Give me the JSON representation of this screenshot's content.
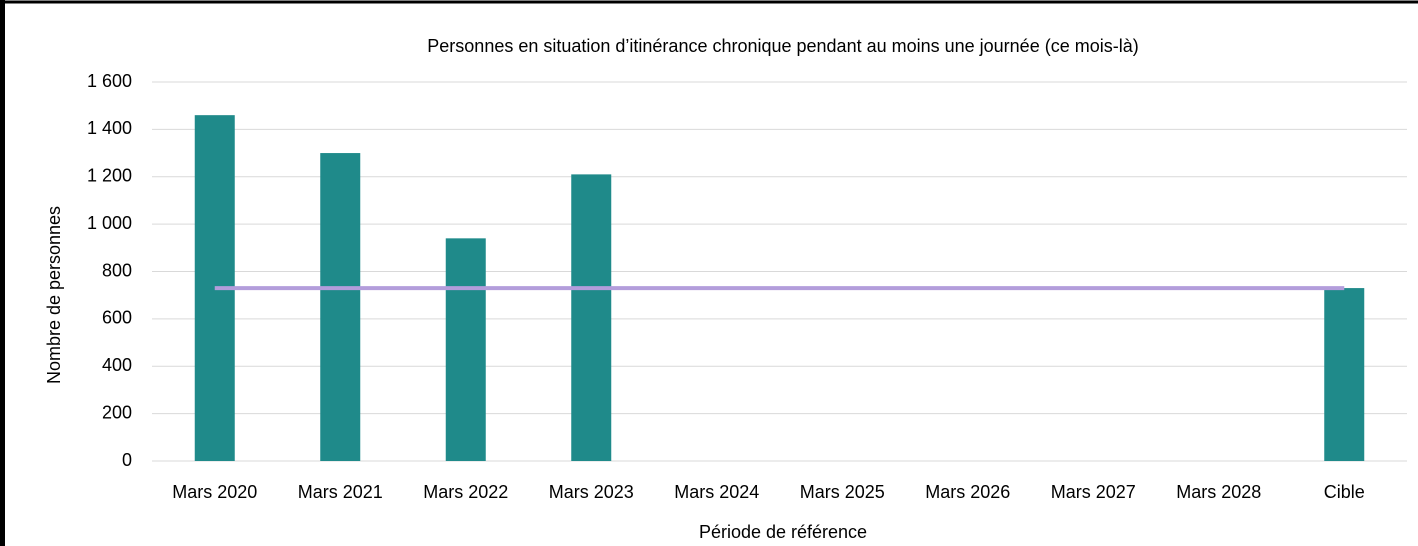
{
  "chart_data": {
    "type": "bar",
    "title": "Personnes en situation d’itinérance chronique pendant au moins une journée (ce mois-là)",
    "x_label": "Période de référence",
    "y_label": "Nombre de personnes",
    "categories": [
      "Mars 2020",
      "Mars 2021",
      "Mars 2022",
      "Mars 2023",
      "Mars 2024",
      "Mars 2025",
      "Mars 2026",
      "Mars 2027",
      "Mars 2028",
      "Cible"
    ],
    "series": [
      {
        "type": "bar",
        "color": "#1f8a8a",
        "values": [
          1460,
          1300,
          940,
          1210,
          null,
          null,
          null,
          null,
          null,
          730
        ]
      },
      {
        "type": "line",
        "color": "#b39ddb",
        "values": [
          730,
          730,
          730,
          730,
          730,
          730,
          730,
          730,
          730,
          730
        ]
      }
    ],
    "ylim": [
      0,
      1600
    ],
    "yticks": [
      0,
      200,
      400,
      600,
      800,
      {
        "value": 1000,
        "label": "1 000"
      },
      {
        "value": 1200,
        "label": "1 200"
      },
      {
        "value": 1400,
        "label": "1 400"
      },
      {
        "value": 1600,
        "label": "1 600"
      }
    ],
    "grid": true
  }
}
